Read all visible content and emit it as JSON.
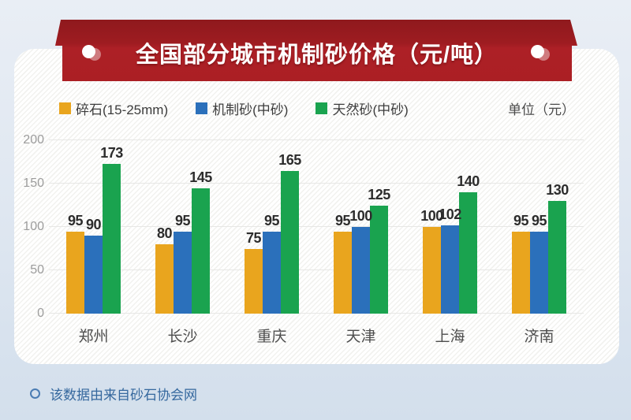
{
  "banner": {
    "title": "全国部分城市机制砂价格（元/吨）"
  },
  "legend": [
    {
      "label": "碎石(15-25mm)",
      "color": "#e9a51e"
    },
    {
      "label": "机制砂(中砂)",
      "color": "#2b70bb"
    },
    {
      "label": "天然砂(中砂)",
      "color": "#1aa34f"
    }
  ],
  "unit_label": "单位（元）",
  "chart_data": {
    "type": "bar",
    "title": "全国部分城市机制砂价格（元/吨）",
    "categories": [
      "郑州",
      "长沙",
      "重庆",
      "天津",
      "上海",
      "济南"
    ],
    "series": [
      {
        "name": "碎石(15-25mm)",
        "color": "#e9a51e",
        "values": [
          95,
          80,
          75,
          95,
          100,
          95
        ]
      },
      {
        "name": "机制砂(中砂)",
        "color": "#2b70bb",
        "values": [
          90,
          95,
          95,
          100,
          102,
          95
        ]
      },
      {
        "name": "天然砂(中砂)",
        "color": "#1aa34f",
        "values": [
          173,
          145,
          165,
          125,
          140,
          130
        ]
      }
    ],
    "ylim": [
      0,
      200
    ],
    "yticks": [
      0,
      50,
      100,
      150,
      200
    ],
    "grid": true,
    "legend_position": "top",
    "value_labels": true
  },
  "footer": {
    "note": "该数据由来自砂石协会网"
  }
}
